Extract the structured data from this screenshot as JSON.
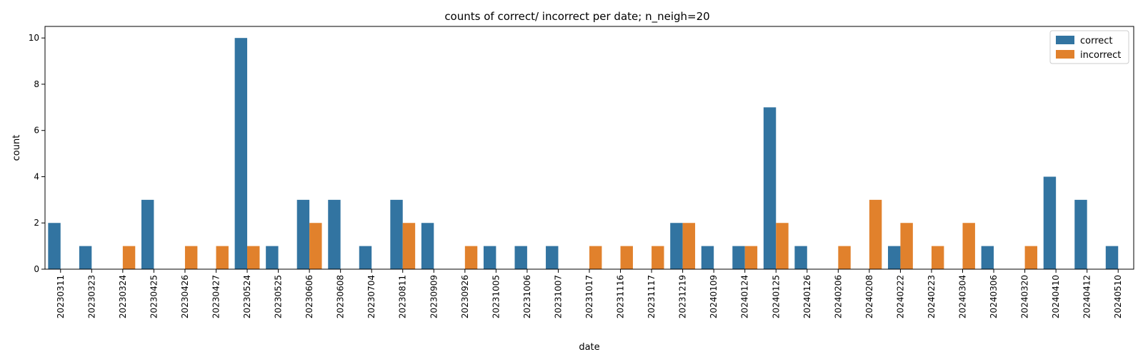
{
  "chart_data": {
    "type": "bar",
    "title": "counts of correct/ incorrect per date; n_neigh=20",
    "xlabel": "date",
    "ylabel": "count",
    "ylim": [
      0,
      10.5
    ],
    "yticks": [
      0,
      2,
      4,
      6,
      8,
      10
    ],
    "grid": false,
    "legend_position": "top-right",
    "categories": [
      "20230311",
      "20230323",
      "20230324",
      "20230425",
      "20230426",
      "20230427",
      "20230524",
      "20230525",
      "20230606",
      "20230608",
      "20230704",
      "20230811",
      "20230909",
      "20230926",
      "20231005",
      "20231006",
      "20231007",
      "20231017",
      "20231116",
      "20231117",
      "20231219",
      "20240109",
      "20240124",
      "20240125",
      "20240126",
      "20240206",
      "20240208",
      "20240222",
      "20240223",
      "20240304",
      "20240306",
      "20240320",
      "20240410",
      "20240412",
      "20240510"
    ],
    "series": [
      {
        "name": "correct",
        "color": "#3274a1",
        "values": [
          2,
          1,
          0,
          3,
          0,
          0,
          10,
          1,
          3,
          3,
          1,
          3,
          2,
          0,
          1,
          1,
          1,
          0,
          0,
          0,
          2,
          1,
          1,
          7,
          1,
          0,
          0,
          1,
          0,
          0,
          1,
          0,
          4,
          3,
          1
        ]
      },
      {
        "name": "incorrect",
        "color": "#e1812c",
        "values": [
          0,
          0,
          1,
          0,
          1,
          1,
          1,
          0,
          2,
          0,
          0,
          2,
          0,
          1,
          0,
          0,
          0,
          1,
          1,
          1,
          2,
          0,
          1,
          2,
          0,
          1,
          3,
          2,
          1,
          2,
          0,
          1,
          0,
          0,
          0
        ]
      }
    ]
  }
}
